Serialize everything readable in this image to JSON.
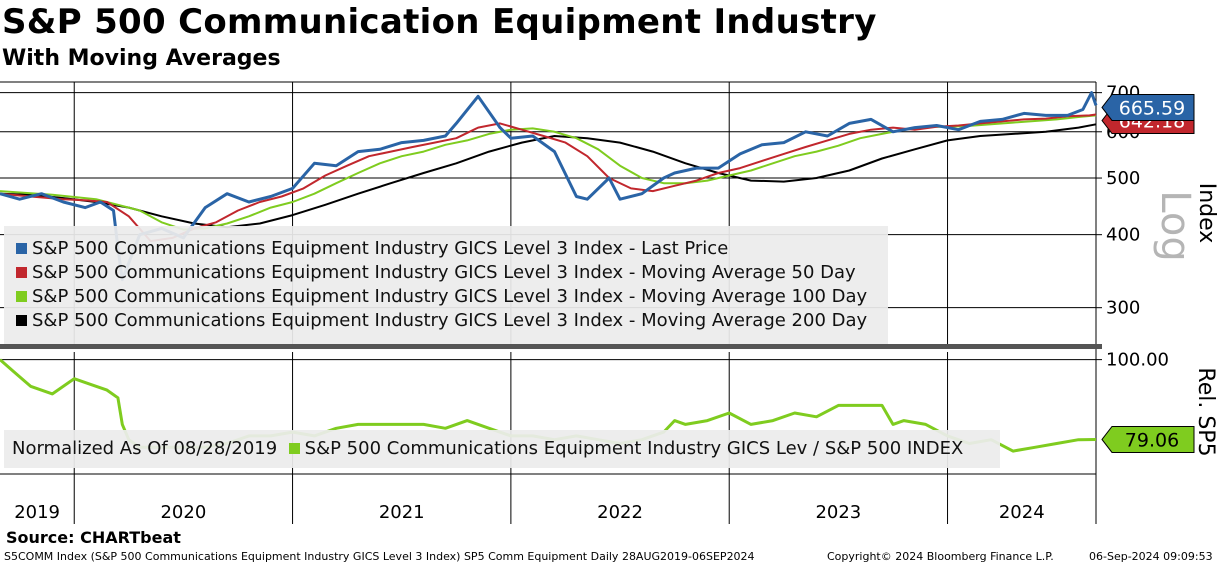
{
  "title": "S&P 500 Communication Equipment Industry",
  "subtitle": "With Moving Averages",
  "source": "Source: CHARTbeat",
  "footer": {
    "left": "S5COMM Index (S&P 500 Communications Equipment Industry GICS Level 3 Index) SP5 Comm Equipment  Daily 28AUG2019-06SEP2024",
    "copyright": "Copyright© 2024 Bloomberg Finance L.P.",
    "timestamp": "06-Sep-2024 09:09:53"
  },
  "colors": {
    "price": "#2a64a6",
    "ma50": "#c1272d",
    "ma100": "#7fcc1f",
    "ma200": "#000000",
    "rel": "#7fcc1f"
  },
  "chart_data": [
    {
      "type": "line",
      "scale": "log",
      "ylabel": "Index",
      "scale_label": "Log",
      "ylim": [
        260,
        730
      ],
      "yticks": [
        300,
        400,
        500,
        600,
        700
      ],
      "x_label_years": [
        "2019",
        "2020",
        "2021",
        "2022",
        "2023",
        "2024"
      ],
      "x_domain": [
        2019.66,
        2024.68
      ],
      "x_year_boundaries": [
        2020,
        2021,
        2022,
        2023,
        2024
      ],
      "last_value_labels": [
        {
          "series": "Last Price",
          "text": "665.59"
        },
        {
          "series": "Moving Average 50 Day",
          "text": "642.18"
        }
      ],
      "legend": [
        "S&P 500 Communications Equipment Industry GICS Level 3 Index - Last Price",
        "S&P 500 Communications Equipment Industry GICS Level 3 Index - Moving Average 50 Day",
        "S&P 500 Communications Equipment Industry GICS Level 3 Index - Moving Average 100 Day",
        "S&P 500 Communications Equipment Industry GICS Level 3 Index - Moving Average 200 Day"
      ],
      "series": [
        {
          "name": "Last Price",
          "x": [
            2019.66,
            2019.75,
            2019.85,
            2019.95,
            2020.05,
            2020.12,
            2020.18,
            2020.2,
            2020.22,
            2020.3,
            2020.4,
            2020.5,
            2020.6,
            2020.7,
            2020.8,
            2020.9,
            2021.0,
            2021.1,
            2021.2,
            2021.3,
            2021.4,
            2021.5,
            2021.6,
            2021.7,
            2021.75,
            2021.85,
            2021.95,
            2022.0,
            2022.1,
            2022.2,
            2022.3,
            2022.35,
            2022.45,
            2022.5,
            2022.6,
            2022.7,
            2022.75,
            2022.85,
            2022.95,
            2023.05,
            2023.15,
            2023.25,
            2023.35,
            2023.45,
            2023.55,
            2023.65,
            2023.75,
            2023.85,
            2023.95,
            2024.05,
            2024.15,
            2024.25,
            2024.35,
            2024.45,
            2024.55,
            2024.62,
            2024.66,
            2024.68
          ],
          "values": [
            470,
            460,
            470,
            455,
            445,
            455,
            440,
            380,
            335,
            400,
            410,
            395,
            445,
            470,
            455,
            465,
            480,
            530,
            525,
            555,
            560,
            575,
            580,
            590,
            620,
            690,
            610,
            585,
            590,
            555,
            465,
            460,
            500,
            460,
            470,
            500,
            510,
            520,
            520,
            550,
            570,
            575,
            600,
            590,
            620,
            630,
            600,
            610,
            615,
            605,
            625,
            630,
            645,
            640,
            640,
            655,
            700,
            665.59
          ]
        },
        {
          "name": "Moving Average 50 Day",
          "x": [
            2019.66,
            2019.8,
            2019.95,
            2020.05,
            2020.15,
            2020.25,
            2020.35,
            2020.45,
            2020.55,
            2020.65,
            2020.75,
            2020.85,
            2020.95,
            2021.05,
            2021.15,
            2021.25,
            2021.35,
            2021.45,
            2021.55,
            2021.65,
            2021.75,
            2021.85,
            2021.95,
            2022.05,
            2022.15,
            2022.25,
            2022.35,
            2022.45,
            2022.55,
            2022.65,
            2022.75,
            2022.85,
            2022.95,
            2023.05,
            2023.15,
            2023.25,
            2023.35,
            2023.45,
            2023.55,
            2023.65,
            2023.75,
            2023.85,
            2023.95,
            2024.05,
            2024.15,
            2024.25,
            2024.35,
            2024.45,
            2024.55,
            2024.65,
            2024.68
          ],
          "values": [
            470,
            465,
            460,
            458,
            455,
            430,
            390,
            395,
            410,
            420,
            440,
            455,
            465,
            480,
            505,
            525,
            545,
            555,
            565,
            575,
            585,
            610,
            620,
            605,
            590,
            575,
            545,
            500,
            480,
            475,
            485,
            495,
            510,
            520,
            535,
            550,
            565,
            580,
            595,
            605,
            610,
            605,
            612,
            615,
            620,
            625,
            630,
            632,
            638,
            640,
            642.18
          ]
        },
        {
          "name": "Moving Average 100 Day",
          "x": [
            2019.66,
            2019.9,
            2020.1,
            2020.3,
            2020.4,
            2020.5,
            2020.6,
            2020.7,
            2020.8,
            2020.9,
            2021.0,
            2021.1,
            2021.2,
            2021.3,
            2021.4,
            2021.5,
            2021.6,
            2021.7,
            2021.8,
            2021.9,
            2022.0,
            2022.1,
            2022.2,
            2022.3,
            2022.4,
            2022.5,
            2022.6,
            2022.7,
            2022.8,
            2022.9,
            2023.0,
            2023.1,
            2023.2,
            2023.3,
            2023.4,
            2023.5,
            2023.6,
            2023.7,
            2023.8,
            2023.9,
            2024.0,
            2024.1,
            2024.2,
            2024.3,
            2024.4,
            2024.5,
            2024.6,
            2024.68
          ],
          "values": [
            475,
            468,
            460,
            440,
            420,
            408,
            410,
            418,
            430,
            445,
            455,
            470,
            490,
            510,
            530,
            545,
            555,
            570,
            580,
            595,
            605,
            608,
            600,
            585,
            560,
            525,
            500,
            490,
            490,
            495,
            505,
            515,
            530,
            545,
            555,
            568,
            585,
            595,
            605,
            612,
            612,
            614,
            618,
            622,
            626,
            630,
            636,
            640
          ]
        },
        {
          "name": "Moving Average 200 Day",
          "x": [
            2019.66,
            2019.8,
            2019.95,
            2020.1,
            2020.25,
            2020.4,
            2020.55,
            2020.7,
            2020.85,
            2021.0,
            2021.15,
            2021.3,
            2021.45,
            2021.6,
            2021.75,
            2021.9,
            2022.05,
            2022.2,
            2022.35,
            2022.5,
            2022.65,
            2022.8,
            2022.95,
            2023.1,
            2023.25,
            2023.4,
            2023.55,
            2023.7,
            2023.85,
            2024.0,
            2024.15,
            2024.3,
            2024.45,
            2024.6,
            2024.68
          ],
          "values": [
            470,
            468,
            462,
            455,
            445,
            430,
            418,
            412,
            418,
            432,
            450,
            470,
            490,
            510,
            530,
            555,
            575,
            590,
            585,
            575,
            555,
            530,
            510,
            495,
            493,
            500,
            515,
            540,
            560,
            580,
            590,
            595,
            600,
            610,
            618
          ]
        }
      ]
    },
    {
      "type": "line",
      "ylabel": "Rel. SP5",
      "ylim": [
        70,
        102
      ],
      "yticks": [
        100.0
      ],
      "ytick_labels": [
        "100.00"
      ],
      "last_value_label": "79.06",
      "legend_prefix": "Normalized As Of 08/28/2019",
      "legend": [
        "S&P 500 Communications Equipment Industry GICS Lev / S&P 500 INDEX"
      ],
      "series": [
        {
          "name": "S&P 500 Communications Equipment Industry GICS Lev / S&P 500 INDEX",
          "x": [
            2019.66,
            2019.72,
            2019.8,
            2019.9,
            2020.0,
            2020.1,
            2020.15,
            2020.2,
            2020.22,
            2020.25,
            2020.3,
            2020.4,
            2020.5,
            2020.6,
            2020.7,
            2020.8,
            2020.9,
            2021.0,
            2021.1,
            2021.2,
            2021.3,
            2021.4,
            2021.5,
            2021.6,
            2021.7,
            2021.8,
            2021.9,
            2022.0,
            2022.1,
            2022.2,
            2022.3,
            2022.4,
            2022.5,
            2022.6,
            2022.7,
            2022.75,
            2022.8,
            2022.9,
            2023.0,
            2023.1,
            2023.2,
            2023.3,
            2023.4,
            2023.5,
            2023.6,
            2023.7,
            2023.75,
            2023.8,
            2023.9,
            2024.0,
            2024.1,
            2024.2,
            2024.3,
            2024.4,
            2024.5,
            2024.6,
            2024.68
          ],
          "values": [
            100,
            97,
            93,
            91,
            95,
            93,
            92,
            90,
            83,
            79,
            77,
            77,
            77,
            77,
            78,
            80,
            80,
            81,
            80,
            82,
            83,
            83,
            83,
            83,
            82,
            84,
            82,
            80,
            80,
            79,
            80,
            79,
            78,
            79,
            81,
            84,
            83,
            84,
            86,
            83,
            84,
            86,
            85,
            88,
            88,
            88,
            83,
            84,
            83,
            80,
            78,
            79,
            76,
            77,
            78,
            79,
            79.06
          ]
        }
      ]
    }
  ]
}
